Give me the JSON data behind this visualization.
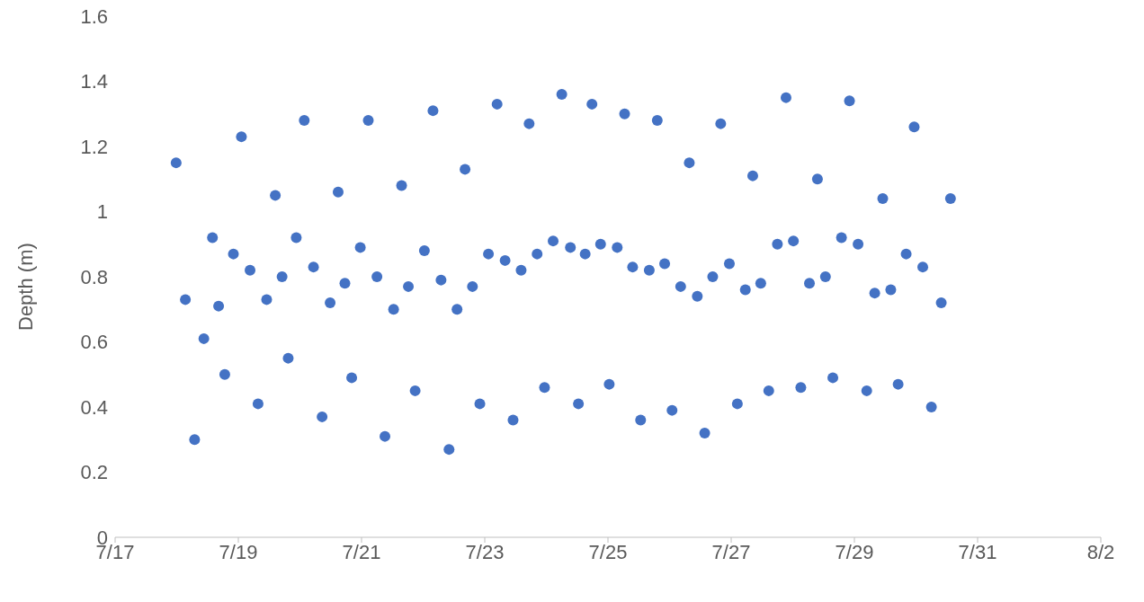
{
  "chart_data": {
    "type": "scatter",
    "ylabel": "Depth (m)",
    "color": "#4472c4",
    "marker": "circle",
    "grid": false,
    "legend": false,
    "x": [
      "--07-17T23:46",
      "--07-18T03:22",
      "--07-18T06:58",
      "--07-18T10:34",
      "--07-18T13:55",
      "--07-18T16:19",
      "--07-18T18:43",
      "--07-18T22:05",
      "--07-19T01:12",
      "--07-19T04:34",
      "--07-19T07:41",
      "--07-19T11:02",
      "--07-19T14:24",
      "--07-19T17:02",
      "--07-19T19:26",
      "--07-19T22:34",
      "--07-20T01:41",
      "--07-20T05:17",
      "--07-20T08:38",
      "--07-20T11:46",
      "--07-20T14:53",
      "--07-20T17:31",
      "--07-20T20:10",
      "--07-20T23:31",
      "--07-21T02:38",
      "--07-21T06:00",
      "--07-21T09:07",
      "--07-21T12:29",
      "--07-21T15:36",
      "--07-21T18:14",
      "--07-21T20:53",
      "--07-22T00:29",
      "--07-22T03:50",
      "--07-22T06:58",
      "--07-22T10:05",
      "--07-22T13:12",
      "--07-22T16:19",
      "--07-22T19:12",
      "--07-22T22:05",
      "--07-23T01:26",
      "--07-23T04:48",
      "--07-23T07:55",
      "--07-23T11:02",
      "--07-23T14:10",
      "--07-23T17:17",
      "--07-23T20:24",
      "--07-23T23:17",
      "--07-24T02:38",
      "--07-24T06:00",
      "--07-24T09:22",
      "--07-24T12:29",
      "--07-24T15:07",
      "--07-24T17:46",
      "--07-24T21:07",
      "--07-25T00:29",
      "--07-25T03:36",
      "--07-25T06:29",
      "--07-25T09:36",
      "--07-25T12:43",
      "--07-25T16:05",
      "--07-25T19:12",
      "--07-25T22:05",
      "--07-26T00:58",
      "--07-26T04:19",
      "--07-26T07:41",
      "--07-26T10:48",
      "--07-26T13:41",
      "--07-26T16:48",
      "--07-26T19:55",
      "--07-26T23:17",
      "--07-27T02:24",
      "--07-27T05:31",
      "--07-27T08:24",
      "--07-27T11:31",
      "--07-27T14:38",
      "--07-27T18:00",
      "--07-27T21:22",
      "--07-28T00:14",
      "--07-28T03:07",
      "--07-28T06:29",
      "--07-28T09:36",
      "--07-28T12:43",
      "--07-28T15:36",
      "--07-28T18:58",
      "--07-28T22:05",
      "--07-29T01:26",
      "--07-29T04:48",
      "--07-29T07:55",
      "--07-29T11:02",
      "--07-29T14:10",
      "--07-29T17:02",
      "--07-29T20:10",
      "--07-29T23:17",
      "--07-30T02:38",
      "--07-30T06:00",
      "--07-30T09:50",
      "--07-30T13:26"
    ],
    "values": [
      1.15,
      0.73,
      0.3,
      0.61,
      0.92,
      0.71,
      0.5,
      0.87,
      1.23,
      0.82,
      0.41,
      0.73,
      1.05,
      0.8,
      0.55,
      0.92,
      1.28,
      0.83,
      0.37,
      0.72,
      1.06,
      0.78,
      0.49,
      0.89,
      1.28,
      0.8,
      0.31,
      0.7,
      1.08,
      0.77,
      0.45,
      0.88,
      1.31,
      0.79,
      0.27,
      0.7,
      1.13,
      0.77,
      0.41,
      0.87,
      1.33,
      0.85,
      0.36,
      0.82,
      1.27,
      0.87,
      0.46,
      0.91,
      1.36,
      0.89,
      0.41,
      0.87,
      1.33,
      0.9,
      0.47,
      0.89,
      1.3,
      0.83,
      0.36,
      0.82,
      1.28,
      0.84,
      0.39,
      0.77,
      1.15,
      0.74,
      0.32,
      0.8,
      1.27,
      0.84,
      0.41,
      0.76,
      1.11,
      0.78,
      0.45,
      0.9,
      1.35,
      0.91,
      0.46,
      0.78,
      1.1,
      0.8,
      0.49,
      0.92,
      1.34,
      0.9,
      0.45,
      0.75,
      1.04,
      0.76,
      0.47,
      0.87,
      1.26,
      0.83,
      0.4,
      0.72,
      1.04
    ],
    "xlim": [
      "--07-17",
      "--08-02"
    ],
    "xticks": [
      {
        "value": "--07-17",
        "label": "7/17"
      },
      {
        "value": "--07-19",
        "label": "7/19"
      },
      {
        "value": "--07-21",
        "label": "7/21"
      },
      {
        "value": "--07-23",
        "label": "7/23"
      },
      {
        "value": "--07-25",
        "label": "7/25"
      },
      {
        "value": "--07-27",
        "label": "7/27"
      },
      {
        "value": "--07-29",
        "label": "7/29"
      },
      {
        "value": "--07-31",
        "label": "7/31"
      },
      {
        "value": "--08-02",
        "label": "8/2"
      }
    ],
    "ylim": [
      0,
      1.6
    ],
    "yticks": [
      0,
      0.2,
      0.4,
      0.6,
      0.8,
      1,
      1.2,
      1.4,
      1.6
    ]
  }
}
